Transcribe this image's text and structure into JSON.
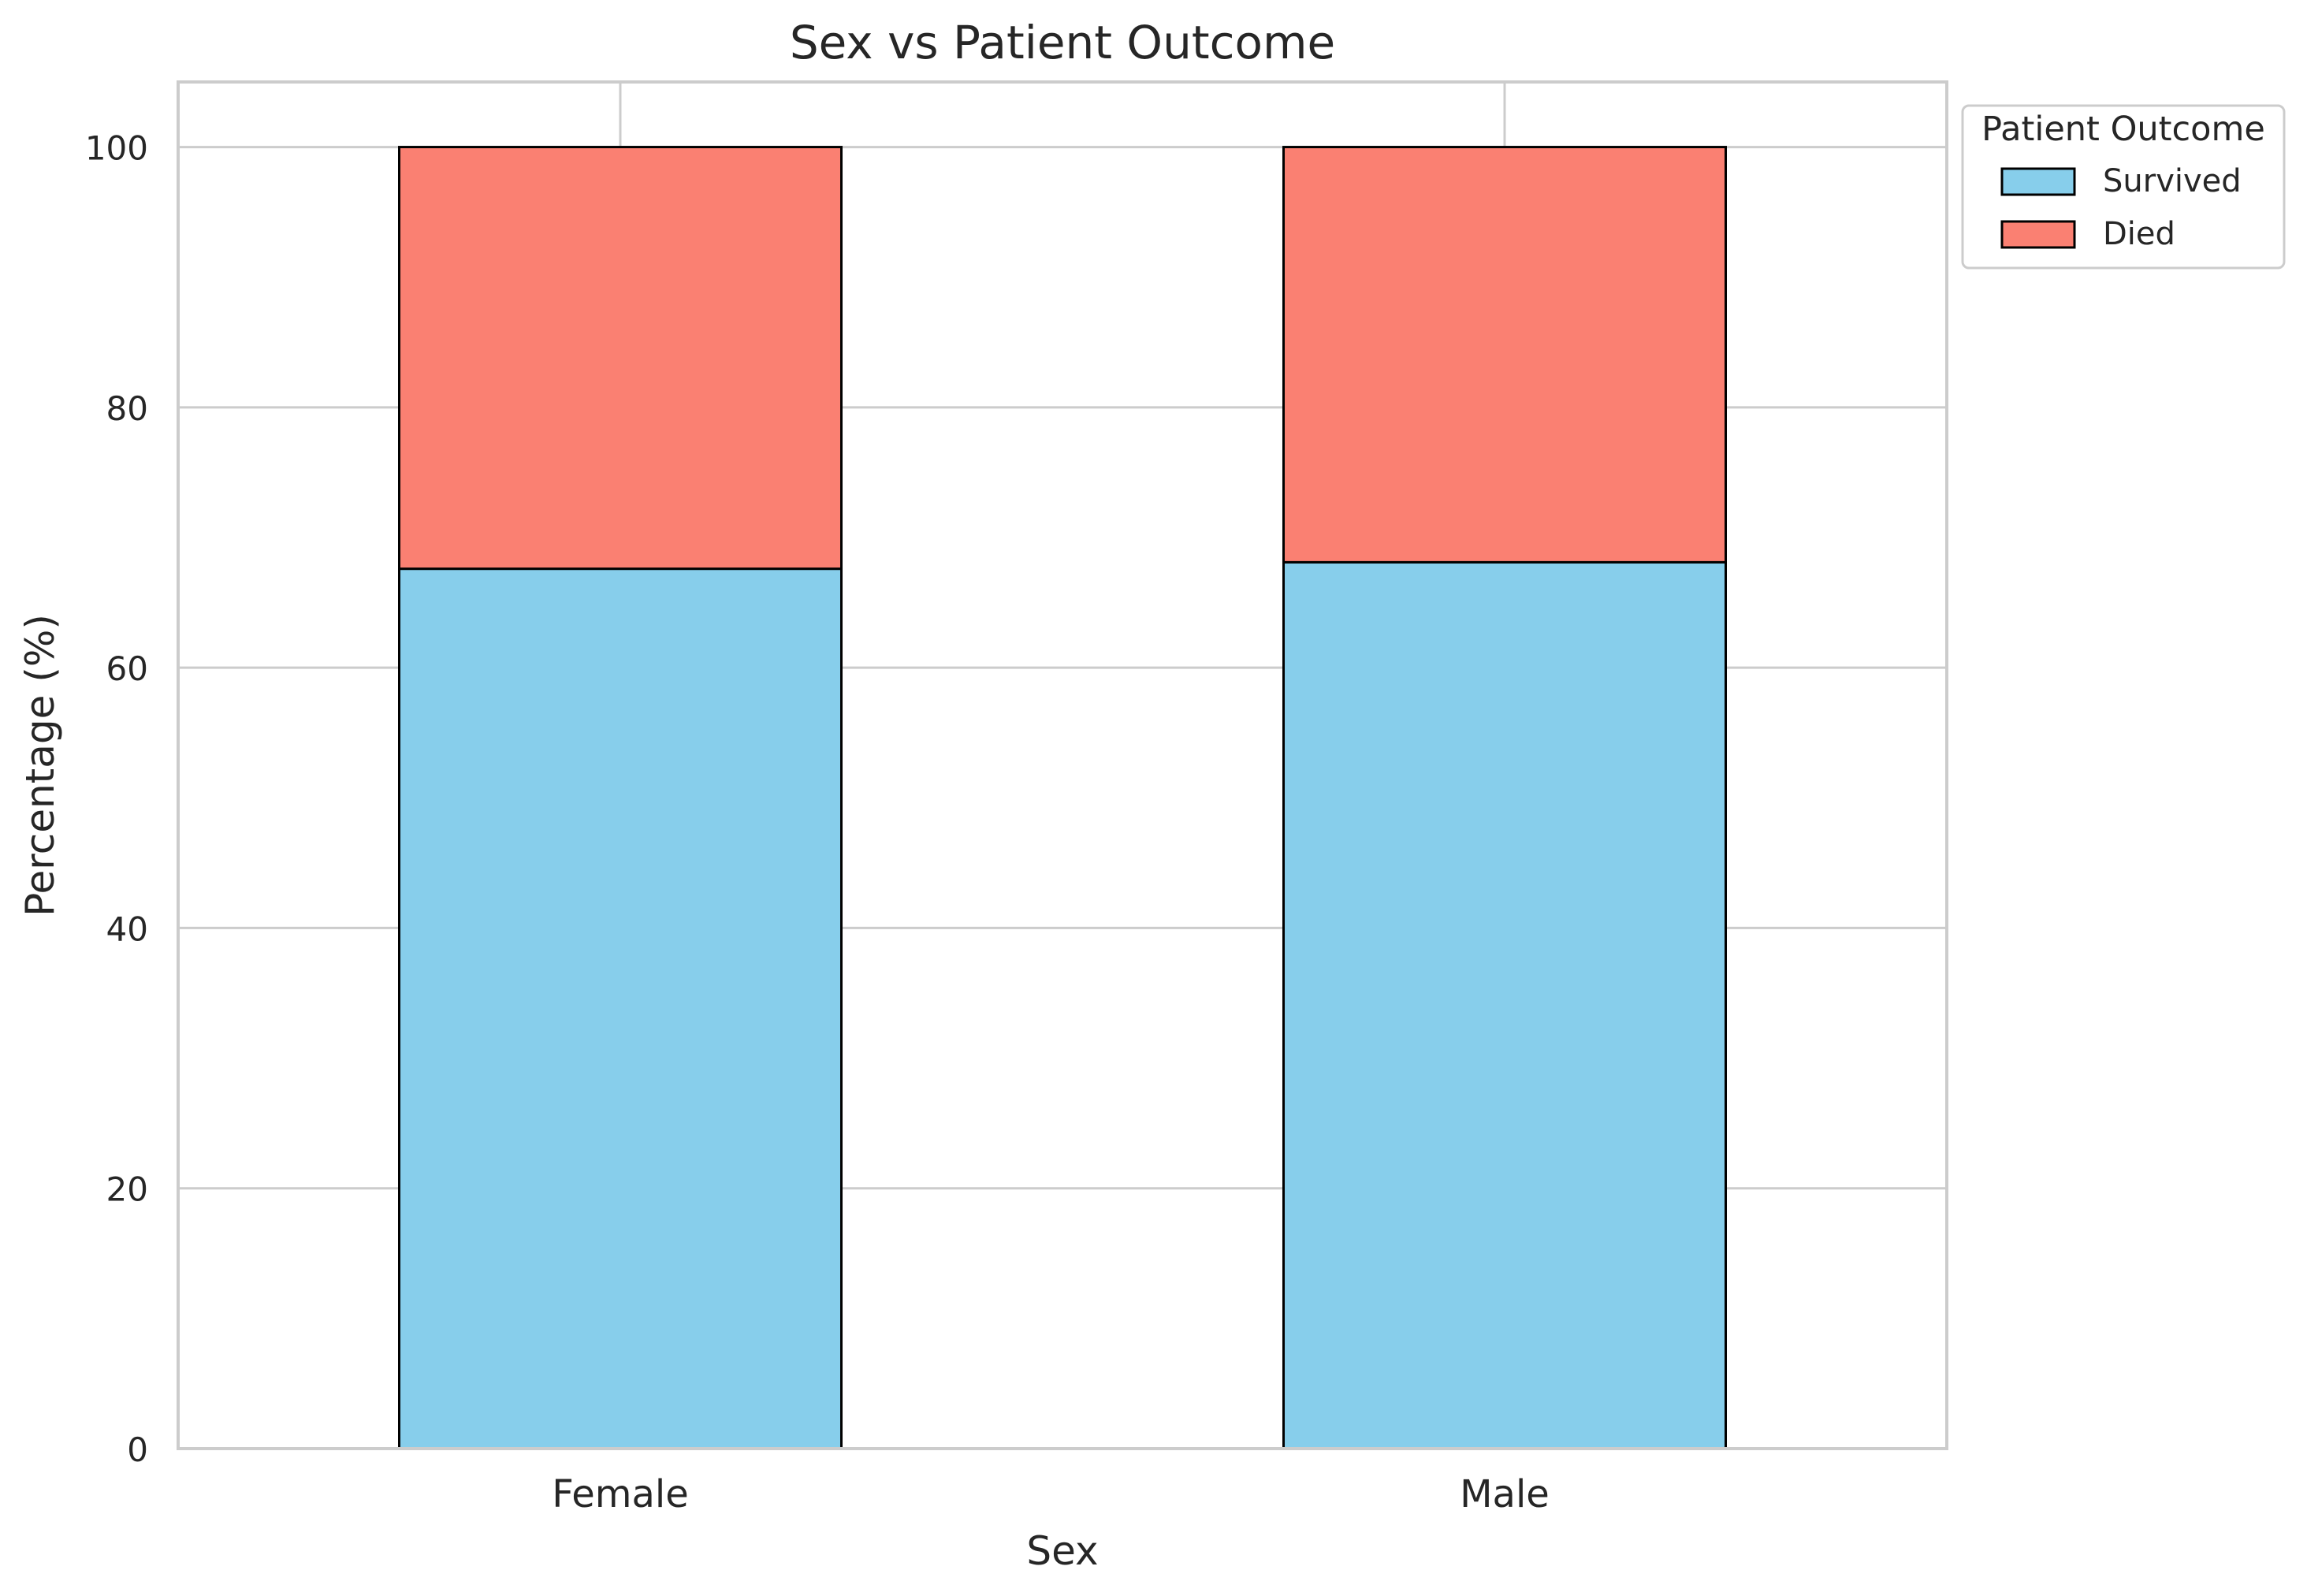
{
  "chart_data": {
    "type": "bar",
    "stacked": true,
    "title": "Sex vs Patient Outcome",
    "xlabel": "Sex",
    "ylabel": "Percentage (%)",
    "categories": [
      "Female",
      "Male"
    ],
    "series": [
      {
        "name": "Survived",
        "values": [
          67.6,
          68.1
        ],
        "color": "#87CEEB"
      },
      {
        "name": "Died",
        "values": [
          32.4,
          31.9
        ],
        "color": "#FA8072"
      }
    ],
    "ylim": [
      0,
      105
    ],
    "yticks": [
      "0",
      "20",
      "40",
      "60",
      "80",
      "100"
    ],
    "grid": true,
    "legend": {
      "title": "Patient Outcome",
      "placement": "outside-top-right"
    }
  }
}
